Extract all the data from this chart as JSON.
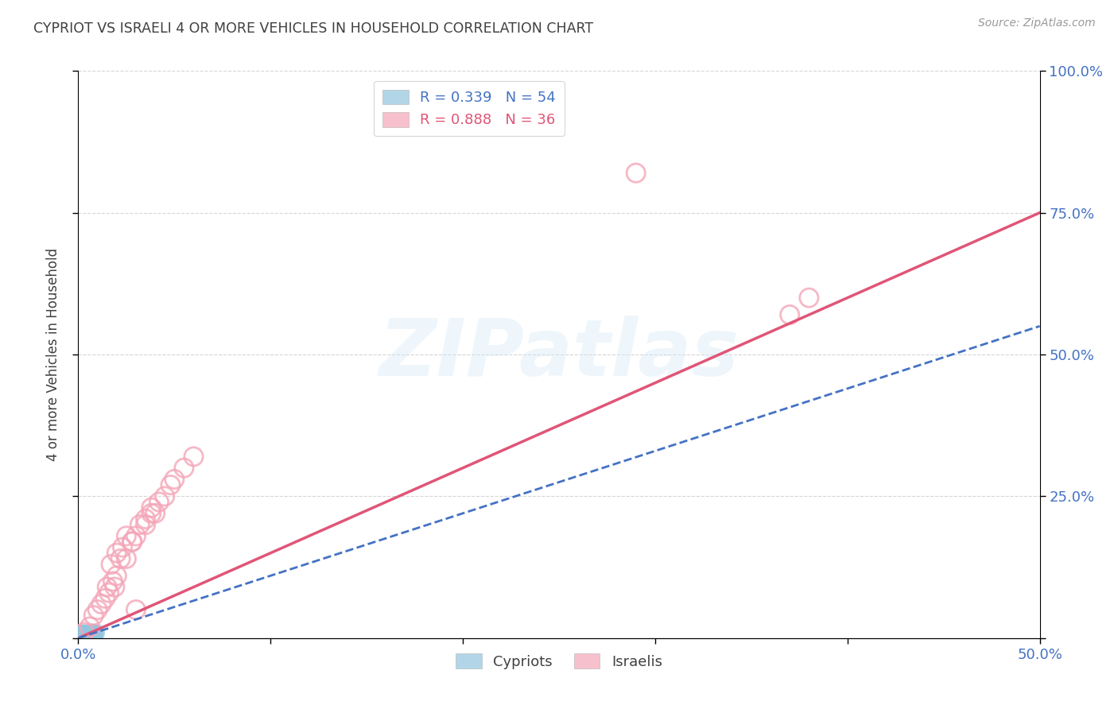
{
  "title": "CYPRIOT VS ISRAELI 4 OR MORE VEHICLES IN HOUSEHOLD CORRELATION CHART",
  "source": "Source: ZipAtlas.com",
  "ylabel": "4 or more Vehicles in Household",
  "xlabel": "",
  "watermark": "ZIPatlas",
  "xlim": [
    0.0,
    0.5
  ],
  "ylim": [
    0.0,
    1.0
  ],
  "xticks": [
    0.0,
    0.1,
    0.2,
    0.3,
    0.4,
    0.5
  ],
  "xticklabels": [
    "0.0%",
    "",
    "",
    "",
    "",
    "50.0%"
  ],
  "ytick_positions": [
    0.0,
    0.25,
    0.5,
    0.75,
    1.0
  ],
  "yticklabels_right": [
    "",
    "25.0%",
    "50.0%",
    "75.0%",
    "100.0%"
  ],
  "cypriot_color": "#92c5de",
  "israeli_color": "#f4a6b8",
  "cypriot_line_color": "#4472c4",
  "israeli_line_color": "#e05577",
  "background_color": "#ffffff",
  "grid_color": "#cccccc",
  "title_color": "#404040",
  "axis_label_color": "#404040",
  "tick_color_right": "#4472c4",
  "tick_color_bottom": "#4472c4",
  "cypriot_R": 0.339,
  "cypriot_N": 54,
  "israeli_R": 0.888,
  "israeli_N": 36,
  "israeli_line": [
    0.0,
    0.0,
    0.5,
    0.75
  ],
  "cypriot_line": [
    0.0,
    0.0,
    0.5,
    0.55
  ],
  "cypriot_points": [
    [
      0.001,
      0.002
    ],
    [
      0.002,
      0.003
    ],
    [
      0.001,
      0.004
    ],
    [
      0.003,
      0.005
    ],
    [
      0.002,
      0.002
    ],
    [
      0.003,
      0.004
    ],
    [
      0.001,
      0.006
    ],
    [
      0.004,
      0.003
    ],
    [
      0.002,
      0.007
    ],
    [
      0.003,
      0.003
    ],
    [
      0.001,
      0.005
    ],
    [
      0.004,
      0.006
    ],
    [
      0.002,
      0.004
    ],
    [
      0.003,
      0.002
    ],
    [
      0.001,
      0.003
    ],
    [
      0.005,
      0.004
    ],
    [
      0.002,
      0.006
    ],
    [
      0.004,
      0.005
    ],
    [
      0.003,
      0.007
    ],
    [
      0.002,
      0.003
    ],
    [
      0.006,
      0.006
    ],
    [
      0.001,
      0.004
    ],
    [
      0.005,
      0.005
    ],
    [
      0.003,
      0.008
    ],
    [
      0.004,
      0.004
    ],
    [
      0.002,
      0.005
    ],
    [
      0.006,
      0.007
    ],
    [
      0.003,
      0.003
    ],
    [
      0.005,
      0.006
    ],
    [
      0.004,
      0.007
    ],
    [
      0.002,
      0.004
    ],
    [
      0.007,
      0.008
    ],
    [
      0.003,
      0.005
    ],
    [
      0.005,
      0.004
    ],
    [
      0.004,
      0.006
    ],
    [
      0.006,
      0.005
    ],
    [
      0.003,
      0.004
    ],
    [
      0.007,
      0.009
    ],
    [
      0.002,
      0.003
    ],
    [
      0.005,
      0.007
    ],
    [
      0.004,
      0.005
    ],
    [
      0.006,
      0.006
    ],
    [
      0.003,
      0.006
    ],
    [
      0.008,
      0.008
    ],
    [
      0.004,
      0.007
    ],
    [
      0.005,
      0.005
    ],
    [
      0.007,
      0.007
    ],
    [
      0.003,
      0.004
    ],
    [
      0.009,
      0.009
    ],
    [
      0.006,
      0.008
    ],
    [
      0.004,
      0.006
    ],
    [
      0.008,
      0.007
    ],
    [
      0.005,
      0.006
    ],
    [
      0.007,
      0.008
    ]
  ],
  "israeli_points": [
    [
      0.003,
      0.01
    ],
    [
      0.006,
      0.02
    ],
    [
      0.008,
      0.04
    ],
    [
      0.01,
      0.05
    ],
    [
      0.012,
      0.06
    ],
    [
      0.014,
      0.07
    ],
    [
      0.016,
      0.08
    ],
    [
      0.015,
      0.09
    ],
    [
      0.018,
      0.1
    ],
    [
      0.02,
      0.11
    ],
    [
      0.017,
      0.13
    ],
    [
      0.022,
      0.14
    ],
    [
      0.025,
      0.14
    ],
    [
      0.02,
      0.15
    ],
    [
      0.023,
      0.16
    ],
    [
      0.028,
      0.17
    ],
    [
      0.019,
      0.09
    ],
    [
      0.03,
      0.18
    ],
    [
      0.025,
      0.18
    ],
    [
      0.032,
      0.2
    ],
    [
      0.035,
      0.21
    ],
    [
      0.028,
      0.17
    ],
    [
      0.038,
      0.22
    ],
    [
      0.04,
      0.22
    ],
    [
      0.038,
      0.23
    ],
    [
      0.035,
      0.2
    ],
    [
      0.042,
      0.24
    ],
    [
      0.045,
      0.25
    ],
    [
      0.048,
      0.27
    ],
    [
      0.05,
      0.28
    ],
    [
      0.055,
      0.3
    ],
    [
      0.06,
      0.32
    ],
    [
      0.29,
      0.82
    ],
    [
      0.37,
      0.57
    ],
    [
      0.38,
      0.6
    ],
    [
      0.03,
      0.05
    ]
  ]
}
